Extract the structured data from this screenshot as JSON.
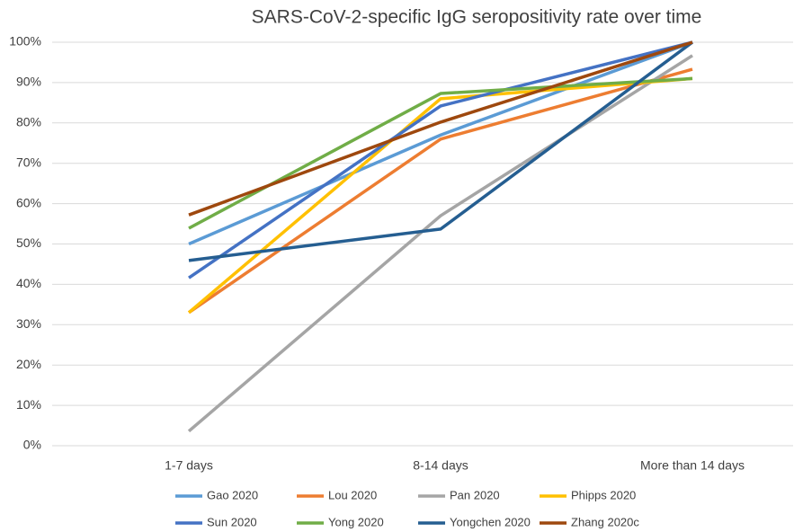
{
  "chart_data": {
    "type": "line",
    "title": "SARS-CoV-2-specific IgG seropositivity rate over time",
    "categories": [
      "1-7 days",
      "8-14 days",
      "More than 14 days"
    ],
    "series": [
      {
        "name": "Gao 2020",
        "color": "#5b9bd5",
        "values": [
          50,
          77,
          100
        ]
      },
      {
        "name": "Lou 2020",
        "color": "#ed7d31",
        "values": [
          33,
          76,
          93.3
        ]
      },
      {
        "name": "Pan 2020",
        "color": "#a5a5a5",
        "values": [
          3.6,
          57,
          96.7
        ]
      },
      {
        "name": "Phipps 2020",
        "color": "#ffc000",
        "values": [
          33,
          86,
          91
        ]
      },
      {
        "name": "Sun 2020",
        "color": "#4472c4",
        "values": [
          41.6,
          84.2,
          100
        ]
      },
      {
        "name": "Yong 2020",
        "color": "#70ad47",
        "values": [
          53.9,
          87.3,
          91
        ]
      },
      {
        "name": "Yongchen 2020",
        "color": "#255e91",
        "values": [
          45.9,
          53.7,
          100
        ]
      },
      {
        "name": "Zhang 2020c",
        "color": "#9e480e",
        "values": [
          57.2,
          80.2,
          100
        ]
      }
    ],
    "ylim": [
      0,
      100
    ],
    "yticks": [
      {
        "value": 0,
        "label": "0%"
      },
      {
        "value": 10,
        "label": "10%"
      },
      {
        "value": 20,
        "label": "20%"
      },
      {
        "value": 30,
        "label": "30%"
      },
      {
        "value": 40,
        "label": "40%"
      },
      {
        "value": 50,
        "label": "50%"
      },
      {
        "value": 60,
        "label": "60%"
      },
      {
        "value": 70,
        "label": "70%"
      },
      {
        "value": 80,
        "label": "80%"
      },
      {
        "value": 90,
        "label": "90%"
      },
      {
        "value": 100,
        "label": "100%"
      }
    ],
    "grid": true
  }
}
